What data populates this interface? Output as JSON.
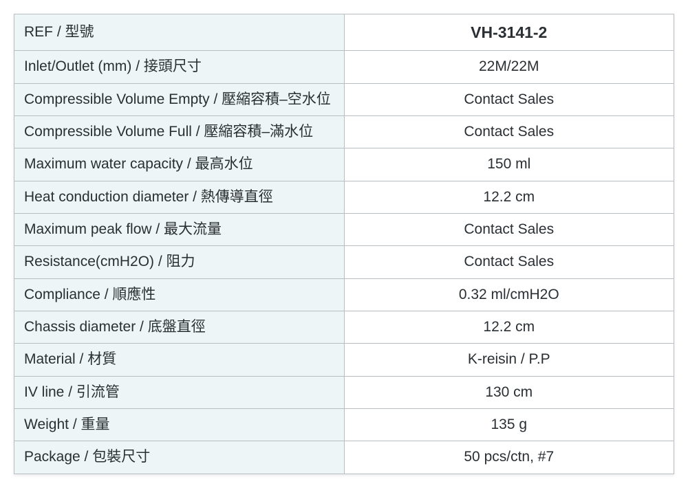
{
  "spec_table": {
    "type": "table",
    "label_bg": "#edf5f6",
    "value_bg": "#ffffff",
    "border_color": "#b8bdc1",
    "outer_border_color": "#9da2a6",
    "text_color": "#2a2f33",
    "label_fontsize": 21,
    "value_fontsize": 21,
    "header_value_fontsize": 23,
    "header_value_fontweight": 700,
    "columns": [
      "label",
      "value"
    ],
    "col_widths": [
      "50%",
      "50%"
    ],
    "value_align": "center",
    "label_align": "left",
    "rows": [
      {
        "label": "REF / 型號",
        "value": "VH-3141-2",
        "is_header": true
      },
      {
        "label": "Inlet/Outlet (mm) / 接頭尺寸",
        "value": "22M/22M"
      },
      {
        "label": "Compressible Volume Empty / 壓縮容積–空水位",
        "value": "Contact Sales"
      },
      {
        "label": "Compressible Volume Full / 壓縮容積–滿水位",
        "value": "Contact Sales"
      },
      {
        "label": "Maximum water capacity / 最高水位",
        "value": "150 ml"
      },
      {
        "label": "Heat conduction diameter / 熱傳導直徑",
        "value": "12.2 cm"
      },
      {
        "label": "Maximum peak flow / 最大流量",
        "value": "Contact Sales"
      },
      {
        "label": "Resistance(cmH2O) / 阻力",
        "value": "Contact Sales"
      },
      {
        "label": "Compliance / 順應性",
        "value": "0.32 ml/cmH2O"
      },
      {
        "label": "Chassis diameter / 底盤直徑",
        "value": "12.2 cm"
      },
      {
        "label": "Material / 材質",
        "value": "K-reisin / P.P"
      },
      {
        "label": "IV line / 引流管",
        "value": "130 cm"
      },
      {
        "label": "Weight / 重量",
        "value": "135 g"
      },
      {
        "label": "Package / 包裝尺寸",
        "value": "50 pcs/ctn, #7"
      }
    ]
  }
}
